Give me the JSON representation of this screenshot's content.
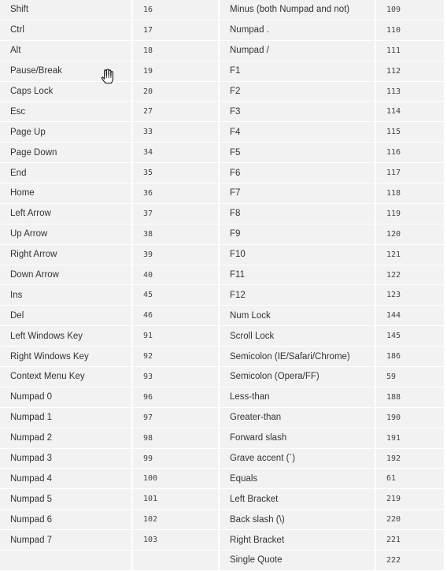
{
  "table": {
    "rows": [
      {
        "key1": "Shift",
        "code1": "16",
        "key2": "Minus (both Numpad and not)",
        "code2": "109"
      },
      {
        "key1": "Ctrl",
        "code1": "17",
        "key2": "Numpad .",
        "code2": "110"
      },
      {
        "key1": "Alt",
        "code1": "18",
        "key2": "Numpad /",
        "code2": "111"
      },
      {
        "key1": "Pause/Break",
        "code1": "19",
        "key2": "F1",
        "code2": "112"
      },
      {
        "key1": "Caps Lock",
        "code1": "20",
        "key2": "F2",
        "code2": "113"
      },
      {
        "key1": "Esc",
        "code1": "27",
        "key2": "F3",
        "code2": "114"
      },
      {
        "key1": "Page Up",
        "code1": "33",
        "key2": "F4",
        "code2": "115"
      },
      {
        "key1": "Page Down",
        "code1": "34",
        "key2": "F5",
        "code2": "116"
      },
      {
        "key1": "End",
        "code1": "35",
        "key2": "F6",
        "code2": "117"
      },
      {
        "key1": "Home",
        "code1": "36",
        "key2": "F7",
        "code2": "118"
      },
      {
        "key1": "Left Arrow",
        "code1": "37",
        "key2": "F8",
        "code2": "119"
      },
      {
        "key1": "Up Arrow",
        "code1": "38",
        "key2": "F9",
        "code2": "120"
      },
      {
        "key1": "Right Arrow",
        "code1": "39",
        "key2": "F10",
        "code2": "121"
      },
      {
        "key1": "Down Arrow",
        "code1": "40",
        "key2": "F11",
        "code2": "122"
      },
      {
        "key1": "Ins",
        "code1": "45",
        "key2": "F12",
        "code2": "123"
      },
      {
        "key1": "Del",
        "code1": "46",
        "key2": "Num Lock",
        "code2": "144"
      },
      {
        "key1": "Left Windows Key",
        "code1": "91",
        "key2": "Scroll Lock",
        "code2": "145"
      },
      {
        "key1": "Right Windows Key",
        "code1": "92",
        "key2": "Semicolon (IE/Safari/Chrome)",
        "code2": "186"
      },
      {
        "key1": "Context Menu Key",
        "code1": "93",
        "key2": "Semicolon (Opera/FF)",
        "code2": "59"
      },
      {
        "key1": "Numpad 0",
        "code1": "96",
        "key2": "Less-than",
        "code2": "188"
      },
      {
        "key1": "Numpad 1",
        "code1": "97",
        "key2": "Greater-than",
        "code2": "190"
      },
      {
        "key1": "Numpad 2",
        "code1": "98",
        "key2": "Forward slash",
        "code2": "191"
      },
      {
        "key1": "Numpad 3",
        "code1": "99",
        "key2": "Grave accent (`)",
        "code2": "192"
      },
      {
        "key1": "Numpad 4",
        "code1": "100",
        "key2": "Equals",
        "code2": "61"
      },
      {
        "key1": "Numpad 5",
        "code1": "101",
        "key2": "Left Bracket",
        "code2": "219"
      },
      {
        "key1": "Numpad 6",
        "code1": "102",
        "key2": "Back slash (\\)",
        "code2": "220"
      },
      {
        "key1": "Numpad 7",
        "code1": "103",
        "key2": "Right Bracket",
        "code2": "221"
      },
      {
        "key1": "",
        "code1": "",
        "key2": "Single Quote",
        "code2": "222"
      }
    ]
  },
  "cursor": {
    "icon": "hand-pointer-icon"
  },
  "colors": {
    "row_background": "#f2f2f2",
    "text": "#333333",
    "divider": "#ffffff"
  }
}
